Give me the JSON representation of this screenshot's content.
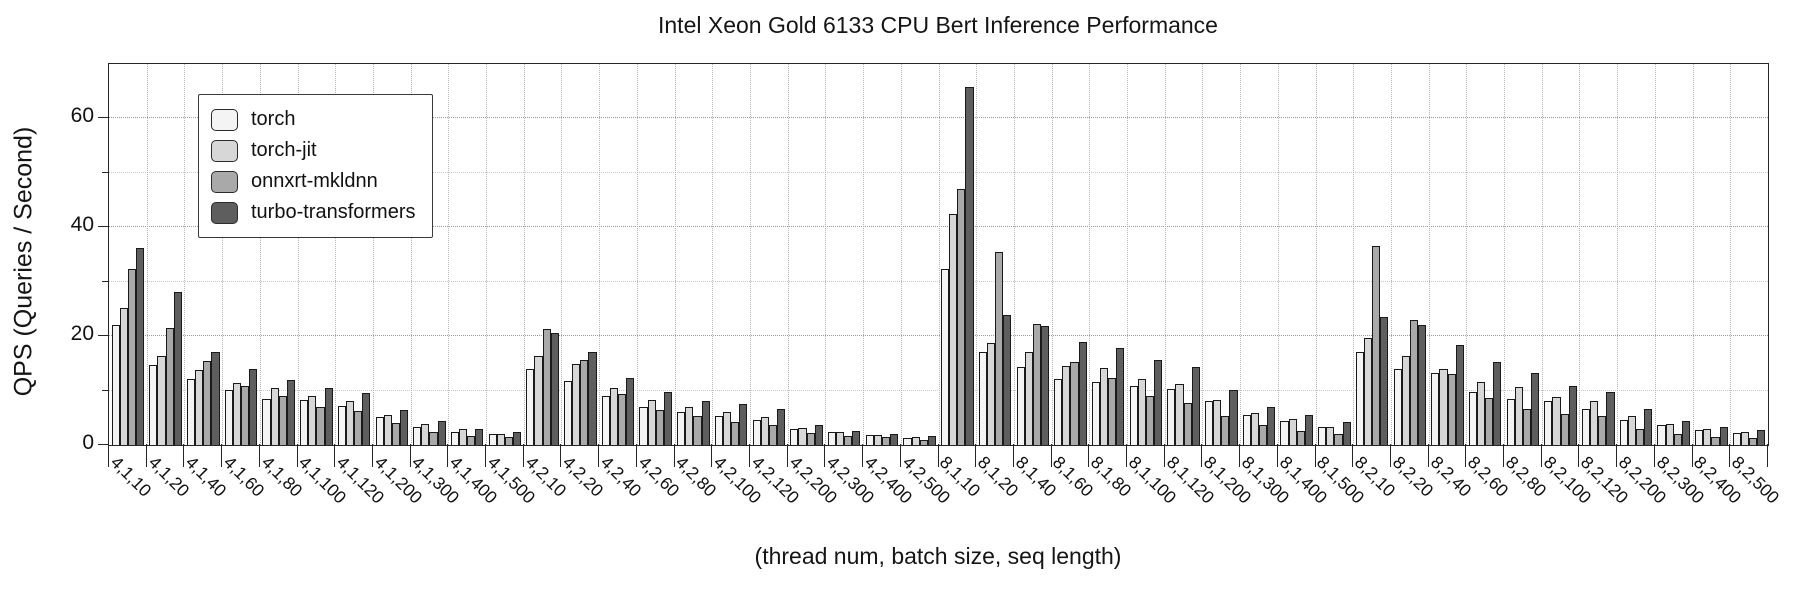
{
  "title": "Intel Xeon Gold 6133 CPU Bert Inference Performance",
  "chart_data": {
    "type": "bar",
    "title": "Intel Xeon Gold 6133 CPU Bert Inference Performance",
    "xlabel": "(thread num, batch size, seq length)",
    "ylabel": "QPS (Queries / Second)",
    "ylim": [
      0,
      70
    ],
    "yticks_major": [
      0,
      20,
      40,
      60
    ],
    "yticks_minor": [
      10,
      30,
      50
    ],
    "grid": "dotted",
    "legend_position": "upper-left",
    "categories": [
      "4,1,10",
      "4,1,20",
      "4,1,40",
      "4,1,60",
      "4,1,80",
      "4,1,100",
      "4,1,120",
      "4,1,200",
      "4,1,300",
      "4,1,400",
      "4,1,500",
      "4,2,10",
      "4,2,20",
      "4,2,40",
      "4,2,60",
      "4,2,80",
      "4,2,100",
      "4,2,120",
      "4,2,200",
      "4,2,300",
      "4,2,400",
      "4,2,500",
      "8,1,10",
      "8,1,20",
      "8,1,40",
      "8,1,60",
      "8,1,80",
      "8,1,100",
      "8,1,120",
      "8,1,200",
      "8,1,300",
      "8,1,400",
      "8,1,500",
      "8,2,10",
      "8,2,20",
      "8,2,40",
      "8,2,60",
      "8,2,80",
      "8,2,100",
      "8,2,120",
      "8,2,200",
      "8,2,300",
      "8,2,400",
      "8,2,500"
    ],
    "series": [
      {
        "name": "torch",
        "color": "#f4f4f4",
        "values": [
          22.1,
          14.7,
          12.2,
          10.1,
          8.5,
          8.2,
          7.2,
          5.1,
          3.4,
          2.4,
          2.0,
          13.9,
          11.8,
          9.0,
          6.9,
          6.1,
          5.4,
          4.6,
          3.0,
          2.3,
          1.8,
          1.3,
          32.3,
          17.1,
          14.3,
          12.2,
          11.6,
          10.9,
          10.3,
          8.1,
          5.5,
          4.4,
          3.3,
          17.0,
          14.0,
          13.3,
          9.8,
          8.4,
          8.1,
          6.6,
          4.6,
          3.7,
          2.7,
          2.2
        ]
      },
      {
        "name": "torch-jit",
        "color": "#d7d7d7",
        "values": [
          25.2,
          16.3,
          13.8,
          11.4,
          10.5,
          9.0,
          8.1,
          5.6,
          3.8,
          2.9,
          2.1,
          16.3,
          14.8,
          10.4,
          8.2,
          6.9,
          6.0,
          5.1,
          3.2,
          2.4,
          1.9,
          1.4,
          42.5,
          18.7,
          17.1,
          14.6,
          14.1,
          12.1,
          11.2,
          8.3,
          5.9,
          4.7,
          3.3,
          19.6,
          16.4,
          14.0,
          11.5,
          10.6,
          8.9,
          8.0,
          5.4,
          3.8,
          3.0,
          2.3
        ]
      },
      {
        "name": "onnxrt-mkldnn",
        "color": "#a9a9a9",
        "values": [
          32.3,
          21.5,
          15.4,
          10.9,
          9.0,
          6.9,
          6.3,
          4.1,
          2.3,
          1.7,
          1.5,
          21.3,
          15.6,
          9.3,
          6.5,
          5.4,
          4.3,
          3.7,
          2.2,
          1.7,
          1.4,
          1.0,
          47.0,
          35.5,
          22.2,
          15.2,
          12.4,
          9.0,
          7.8,
          5.4,
          3.6,
          2.5,
          2.1,
          36.5,
          22.9,
          13.0,
          8.6,
          6.6,
          5.7,
          5.3,
          3.0,
          2.1,
          1.5,
          1.2
        ]
      },
      {
        "name": "turbo-transformers",
        "color": "#5e5e5e",
        "values": [
          36.2,
          28.2,
          17.0,
          14.0,
          12.0,
          10.5,
          9.6,
          6.4,
          4.5,
          2.9,
          2.3,
          20.6,
          17.1,
          12.4,
          9.8,
          8.0,
          7.6,
          6.6,
          3.6,
          2.6,
          2.1,
          1.7,
          65.8,
          23.8,
          21.8,
          18.9,
          17.9,
          15.6,
          14.3,
          10.1,
          6.9,
          5.5,
          4.2,
          23.6,
          22.0,
          18.4,
          15.3,
          13.3,
          10.9,
          9.8,
          6.6,
          4.4,
          3.3,
          2.8
        ]
      }
    ]
  }
}
